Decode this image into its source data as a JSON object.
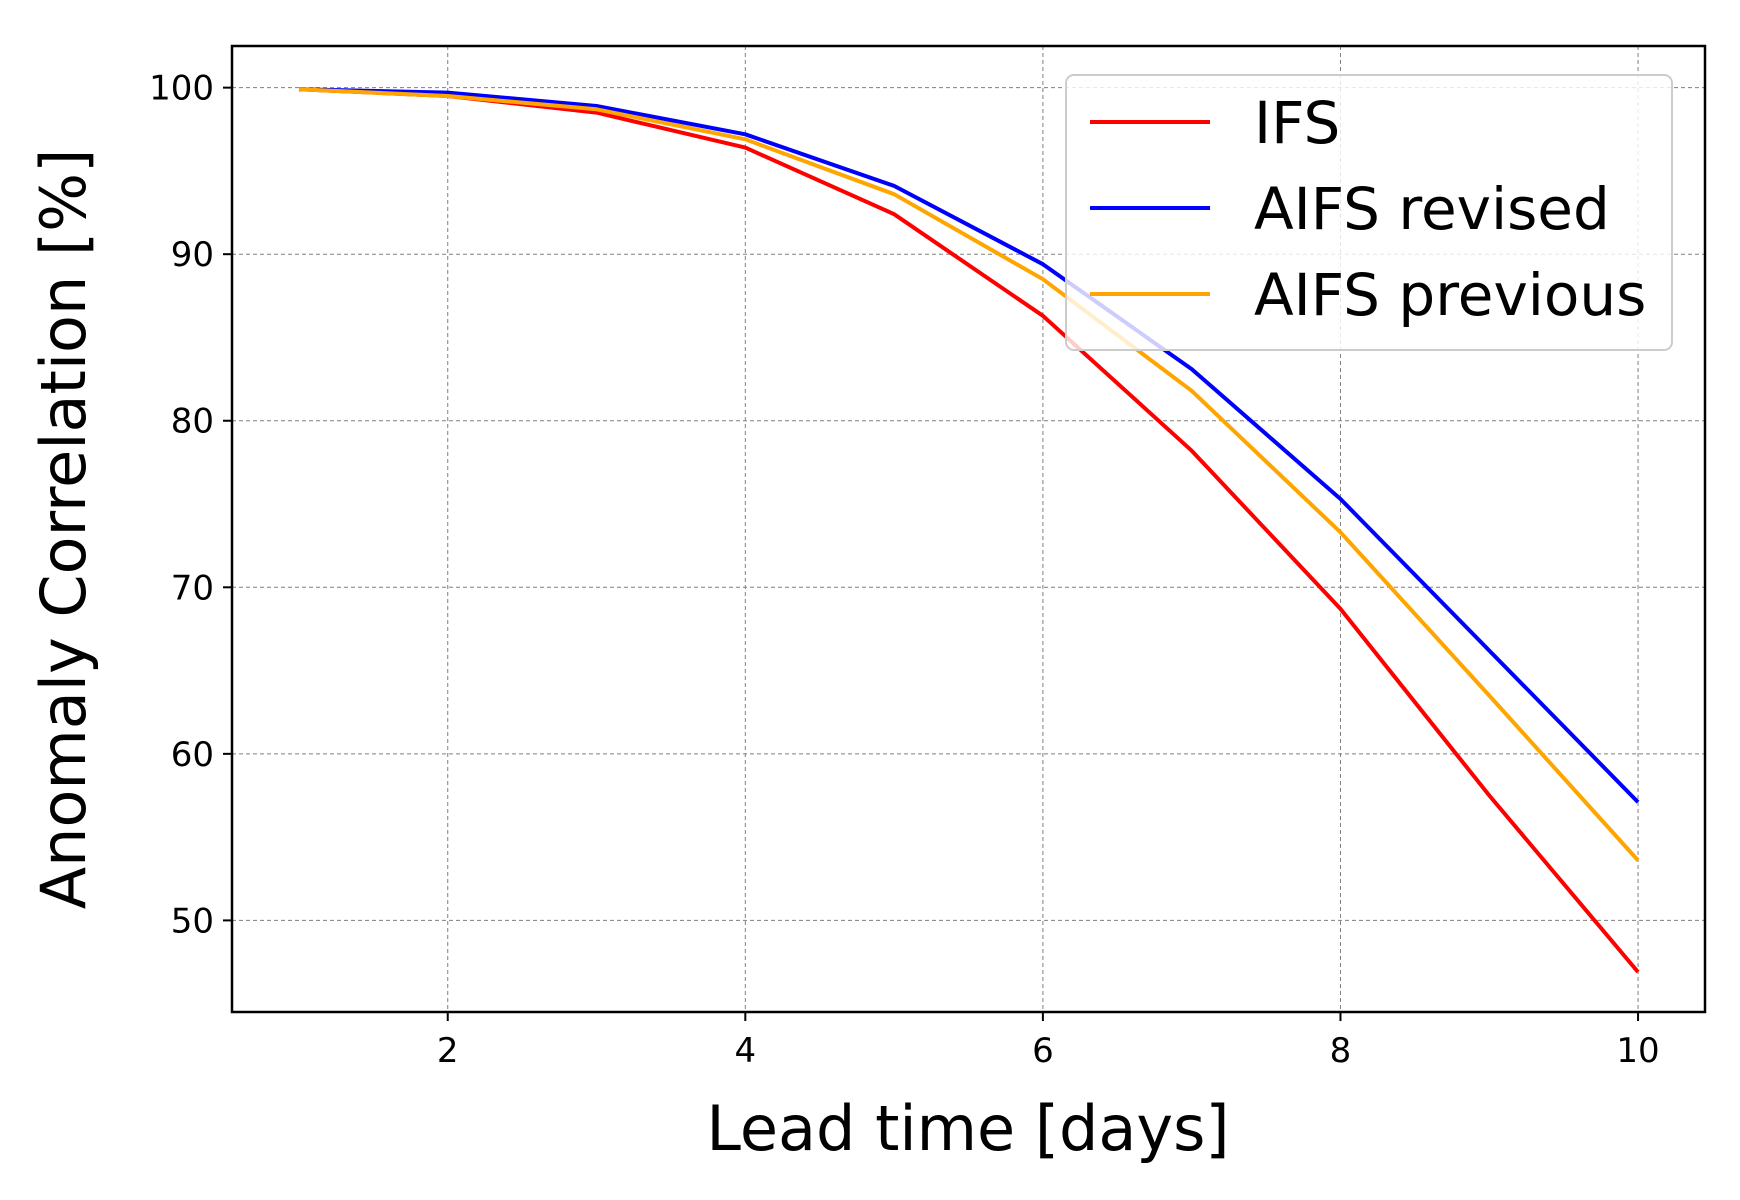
{
  "chart_data": {
    "type": "line",
    "xlabel": "Lead time [days]",
    "ylabel": "Anomaly Correlation [%]",
    "xlim": [
      0.55,
      10.45
    ],
    "ylim": [
      44.5,
      102.5
    ],
    "xticks": [
      2,
      4,
      6,
      8,
      10
    ],
    "yticks": [
      50,
      60,
      70,
      80,
      90,
      100
    ],
    "grid": true,
    "legend_position": "top-right",
    "x": [
      1,
      2,
      3,
      4,
      5,
      6,
      7,
      8,
      9,
      10
    ],
    "series": [
      {
        "name": "IFS",
        "color": "#ff0000",
        "values": [
          99.9,
          99.5,
          98.5,
          96.4,
          92.4,
          86.3,
          78.2,
          68.7,
          57.5,
          46.9
        ]
      },
      {
        "name": "AIFS revised",
        "color": "#0000ff",
        "values": [
          99.9,
          99.7,
          98.9,
          97.2,
          94.1,
          89.4,
          83.1,
          75.3,
          66.2,
          57.1
        ]
      },
      {
        "name": "AIFS previous",
        "color": "#ffa500",
        "values": [
          99.9,
          99.5,
          98.7,
          96.9,
          93.6,
          88.5,
          81.8,
          73.3,
          63.5,
          53.6
        ]
      }
    ]
  }
}
